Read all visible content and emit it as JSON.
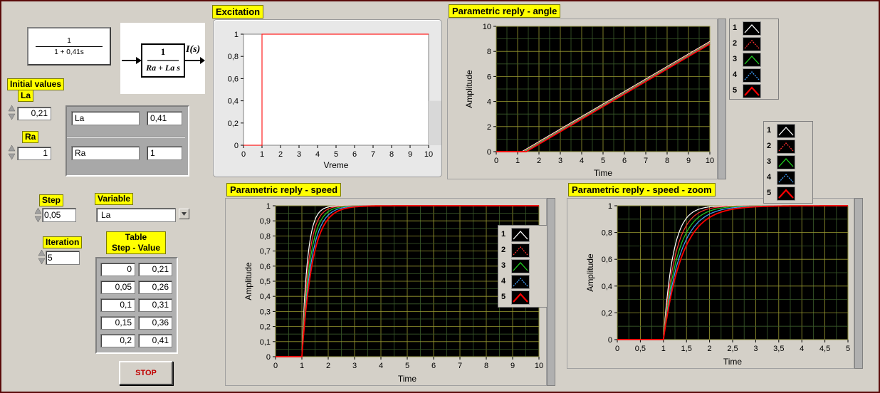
{
  "transfer_fn": {
    "numerator": "1",
    "denominator": "1 + 0,41s"
  },
  "block_diagram": {
    "numerator": "1",
    "denominator": "Ra + La s",
    "output": "I(s)"
  },
  "initial_values": {
    "title": "Initial values",
    "la_label": "La",
    "la_value": "0,21",
    "ra_label": "Ra",
    "ra_value": "1"
  },
  "param_table": [
    {
      "name": "La",
      "value": "0,41"
    },
    {
      "name": "Ra",
      "value": "1"
    }
  ],
  "step": {
    "label": "Step",
    "value": "0,05"
  },
  "variable": {
    "label": "Variable",
    "value": "La"
  },
  "iteration": {
    "label": "Iteration",
    "value": "5"
  },
  "step_table": {
    "title_line1": "Table",
    "title_line2": "Step - Value",
    "rows": [
      [
        "0",
        "0,21"
      ],
      [
        "0,05",
        "0,26"
      ],
      [
        "0,1",
        "0,31"
      ],
      [
        "0,15",
        "0,36"
      ],
      [
        "0,2",
        "0,41"
      ]
    ]
  },
  "stop_button": "STOP",
  "legend_labels": [
    "1",
    "2",
    "3",
    "4",
    "5"
  ],
  "series_colors": [
    "#ffffff",
    "#ff3030",
    "#20d020",
    "#40a0ff",
    "#ff0000"
  ],
  "chart_data": [
    {
      "type": "line",
      "title": "Excitation",
      "xlabel": "Vreme",
      "ylabel": "",
      "xlim": [
        0,
        10
      ],
      "ylim": [
        0,
        1
      ],
      "x_ticks": [
        "0",
        "1",
        "2",
        "3",
        "4",
        "5",
        "6",
        "7",
        "8",
        "9",
        "10"
      ],
      "y_ticks": [
        "0",
        "0,2",
        "0,4",
        "0,6",
        "0,8",
        "1"
      ],
      "series": [
        {
          "x": [
            0,
            1,
            1,
            10
          ],
          "y": [
            0,
            0,
            1,
            1
          ]
        }
      ]
    },
    {
      "type": "line",
      "title": "Parametric reply - angle",
      "xlabel": "Time",
      "ylabel": "Amplitude",
      "xlim": [
        0,
        10
      ],
      "ylim": [
        0,
        10
      ],
      "grid": true,
      "x_ticks": [
        "0",
        "1",
        "2",
        "3",
        "4",
        "5",
        "6",
        "7",
        "8",
        "9",
        "10"
      ],
      "y_ticks": [
        "0",
        "2",
        "4",
        "6",
        "8",
        "10"
      ],
      "series": [
        {
          "name": "1",
          "x": [
            0,
            1,
            1.2,
            10
          ],
          "y": [
            0,
            0,
            0,
            8.79
          ]
        },
        {
          "name": "2",
          "x": [
            0,
            1,
            1.25,
            10
          ],
          "y": [
            0,
            0,
            0,
            8.74
          ]
        },
        {
          "name": "3",
          "x": [
            0,
            1,
            1.3,
            10
          ],
          "y": [
            0,
            0,
            0,
            8.69
          ]
        },
        {
          "name": "4",
          "x": [
            0,
            1,
            1.35,
            10
          ],
          "y": [
            0,
            0,
            0,
            8.64
          ]
        },
        {
          "name": "5",
          "x": [
            0,
            1,
            1.4,
            10
          ],
          "y": [
            0,
            0,
            0,
            8.59
          ]
        }
      ]
    },
    {
      "type": "line",
      "title": "Parametric reply - speed",
      "xlabel": "Time",
      "ylabel": "Amplitude",
      "xlim": [
        0,
        10
      ],
      "ylim": [
        0,
        1
      ],
      "grid": true,
      "x_ticks": [
        "0",
        "1",
        "2",
        "3",
        "4",
        "5",
        "6",
        "7",
        "8",
        "9",
        "10"
      ],
      "y_ticks": [
        "0",
        "0,1",
        "0,2",
        "0,3",
        "0,4",
        "0,5",
        "0,6",
        "0,7",
        "0,8",
        "0,9",
        "1"
      ],
      "series": [
        {
          "name": "1",
          "tau": 0.21
        },
        {
          "name": "2",
          "tau": 0.26
        },
        {
          "name": "3",
          "tau": 0.31
        },
        {
          "name": "4",
          "tau": 0.36
        },
        {
          "name": "5",
          "tau": 0.41
        }
      ]
    },
    {
      "type": "line",
      "title": "Parametric reply - speed - zoom",
      "xlabel": "Time",
      "ylabel": "Amplitude",
      "xlim": [
        0,
        5
      ],
      "ylim": [
        0,
        1
      ],
      "grid": true,
      "x_ticks": [
        "0",
        "0,5",
        "1",
        "1,5",
        "2",
        "2,5",
        "3",
        "3,5",
        "4",
        "4,5",
        "5"
      ],
      "y_ticks": [
        "0",
        "0,2",
        "0,4",
        "0,6",
        "0,8",
        "1"
      ],
      "series": [
        {
          "name": "1",
          "tau": 0.21
        },
        {
          "name": "2",
          "tau": 0.26
        },
        {
          "name": "3",
          "tau": 0.31
        },
        {
          "name": "4",
          "tau": 0.36
        },
        {
          "name": "5",
          "tau": 0.41
        }
      ]
    }
  ]
}
